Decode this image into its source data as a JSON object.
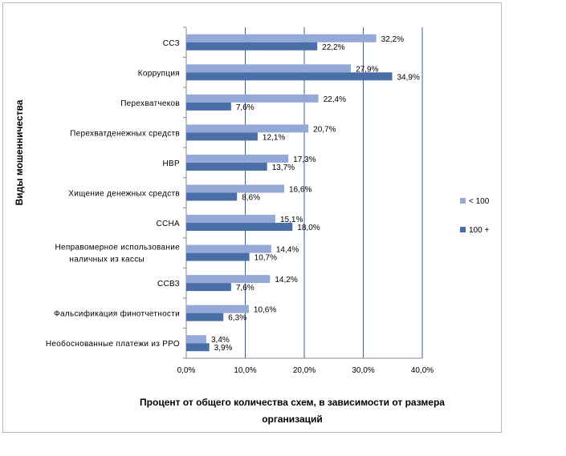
{
  "chart_data": {
    "type": "bar",
    "orientation": "horizontal",
    "categories": [
      [
        "ССЗ"
      ],
      [
        "Коррупция"
      ],
      [
        "Перехватчеков"
      ],
      [
        "Перехватденежных средств"
      ],
      [
        "НВР"
      ],
      [
        "Хищение денежных средств"
      ],
      [
        "ССНА"
      ],
      [
        "Неправомерное использование",
        "наличных из кассы"
      ],
      [
        "ССВЗ"
      ],
      [
        "Фальсификация финотчетности"
      ],
      [
        "Необоснованные платежи из РРО"
      ]
    ],
    "series": [
      {
        "name": "< 100",
        "color": "#95a9d8",
        "values": [
          32.2,
          27.9,
          22.4,
          20.7,
          17.3,
          16.6,
          15.1,
          14.4,
          14.2,
          10.6,
          3.4
        ],
        "labels": [
          "32,2%",
          "27,9%",
          "22,4%",
          "20,7%",
          "17,3%",
          "16,6%",
          "15,1%",
          "14,4%",
          "14,2%",
          "10,6%",
          "3,4%"
        ]
      },
      {
        "name": "100 +",
        "color": "#4a6fa8",
        "values": [
          22.2,
          34.9,
          7.6,
          12.1,
          13.7,
          8.6,
          18.0,
          10.7,
          7.6,
          6.3,
          3.9
        ],
        "labels": [
          "22,2%",
          "34,9%",
          "7,6%",
          "12,1%",
          "13,7%",
          "8,6%",
          "18,0%",
          "10,7%",
          "7,6%",
          "6,3%",
          "3,9%"
        ]
      }
    ],
    "xlim": [
      0,
      40
    ],
    "xticks": [
      "0,0%",
      "10,0%",
      "20,0%",
      "30,0%",
      "40,0%"
    ],
    "ylabel": "Виды мошенничества",
    "xlabel": [
      "Процент от общего количества схем, в зависимости от размера",
      "организаций"
    ],
    "grid": "vertical",
    "gridline_color": "#3b5f8f",
    "legend_position": "right"
  }
}
